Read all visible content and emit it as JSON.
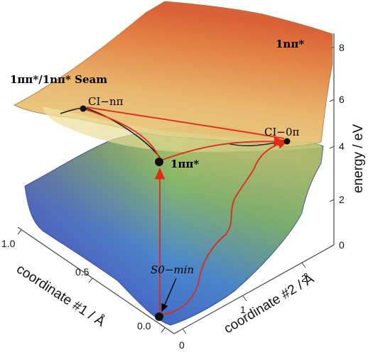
{
  "axes": {
    "energy": {
      "label": "energy / eV",
      "ticks": [
        "0",
        "2",
        "4",
        "6",
        "8"
      ]
    },
    "coord1": {
      "label": "coordinate #1 / Å",
      "ticks": [
        "0.0",
        "0.5",
        "1.0"
      ]
    },
    "coord2": {
      "label": "coordinate #2 / Å",
      "ticks": [
        "0",
        "1",
        "2"
      ]
    }
  },
  "labels": {
    "upper_state": "1nπ*",
    "seam": "1ππ*/1nπ* Seam",
    "ci_npi": "CI−nπ",
    "ci_0pi": "CI−0π",
    "lower_state": "1ππ*",
    "s0_min": "S0−min"
  },
  "colors": {
    "path": "#e02a1a",
    "upper_surface_top": "#e8622a",
    "upper_surface_mid": "#e7c070",
    "lower_surface_blue": "#3c55c8",
    "lower_surface_green": "#7cb060",
    "point": "#111111"
  }
}
